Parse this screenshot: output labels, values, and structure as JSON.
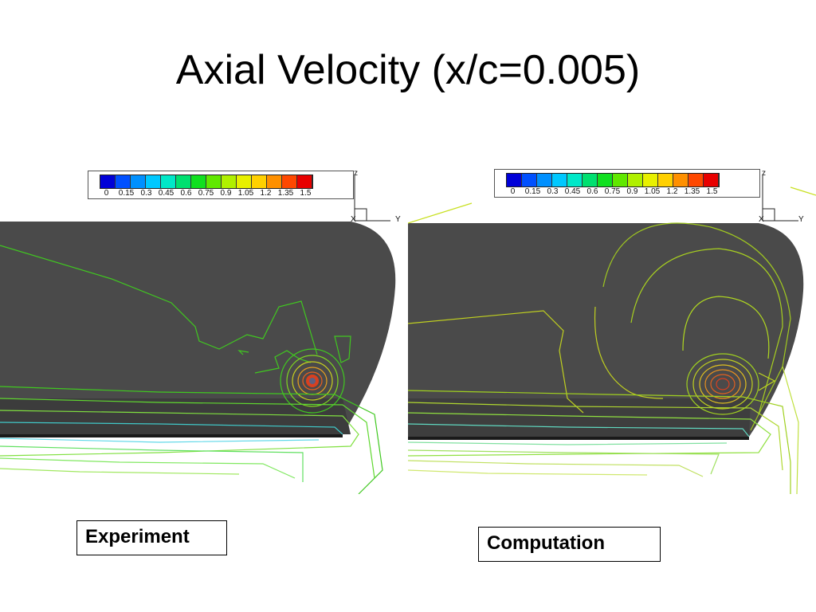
{
  "slide": {
    "title": "Axial Velocity (x/c=0.005)"
  },
  "legend": {
    "ticks": [
      "0",
      "0.15",
      "0.3",
      "0.45",
      "0.6",
      "0.75",
      "0.9",
      "1.05",
      "1.2",
      "1.35",
      "1.5"
    ],
    "colors": [
      "#0000d8",
      "#0050ff",
      "#0090ff",
      "#00c8ff",
      "#00e8c8",
      "#00e070",
      "#10e020",
      "#60e800",
      "#b0f000",
      "#e8f000",
      "#ffd000",
      "#ff9000",
      "#ff4800",
      "#e80000"
    ]
  },
  "axes": {
    "z": "z",
    "x": "X",
    "y": "Y"
  },
  "panels": {
    "left": {
      "caption": "Experiment"
    },
    "right": {
      "caption": "Computation"
    }
  }
}
